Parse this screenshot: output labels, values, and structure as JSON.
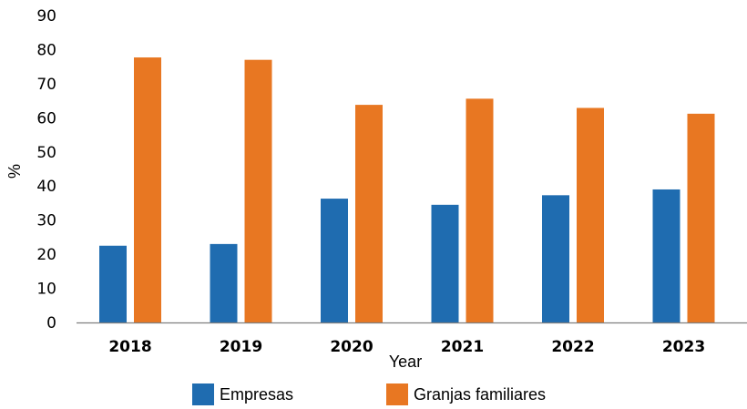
{
  "chart_data": {
    "type": "bar",
    "categories": [
      "2018",
      "2019",
      "2020",
      "2021",
      "2022",
      "2023"
    ],
    "series": [
      {
        "name": "Empresas",
        "color": "#1f6cb0",
        "values": [
          22.5,
          23,
          36.3,
          34.5,
          37.3,
          39
        ]
      },
      {
        "name": "Granjas familiares",
        "color": "#e87722",
        "values": [
          77.7,
          77,
          63.8,
          65.6,
          62.9,
          61.2
        ]
      }
    ],
    "xlabel": "Year",
    "ylabel": "%",
    "ylim": [
      0,
      90
    ],
    "yticks": [
      0,
      10,
      20,
      30,
      40,
      50,
      60,
      70,
      80,
      90
    ],
    "grid": false,
    "legend": "bottom"
  }
}
